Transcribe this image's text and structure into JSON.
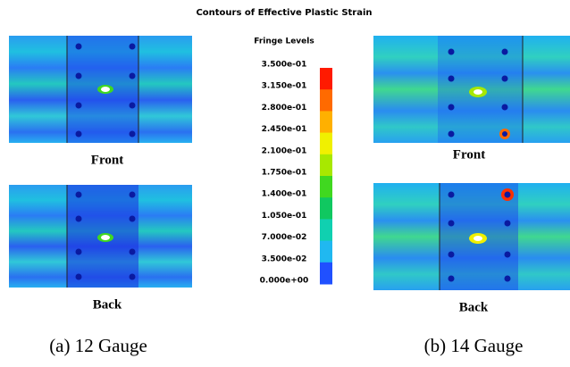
{
  "title": "Contours of Effective Plastic Strain",
  "fringe": {
    "title": "Fringe Levels",
    "levels": [
      "3.500e-01",
      "3.150e-01",
      "2.800e-01",
      "2.450e-01",
      "2.100e-01",
      "1.750e-01",
      "1.400e-01",
      "1.050e-01",
      "7.000e-02",
      "3.500e-02",
      "0.000e+00"
    ],
    "colors": [
      "#ff1a00",
      "#ff6a00",
      "#ffb000",
      "#f0f000",
      "#a8e800",
      "#40d820",
      "#10c860",
      "#10d0b0",
      "#20b8f0",
      "#2050ff"
    ]
  },
  "panels": [
    {
      "front_label": "Front",
      "back_label": "Back",
      "caption": "(a) 12 Gauge"
    },
    {
      "front_label": "Front",
      "back_label": "Back",
      "caption": "(b) 14 Gauge"
    }
  ]
}
